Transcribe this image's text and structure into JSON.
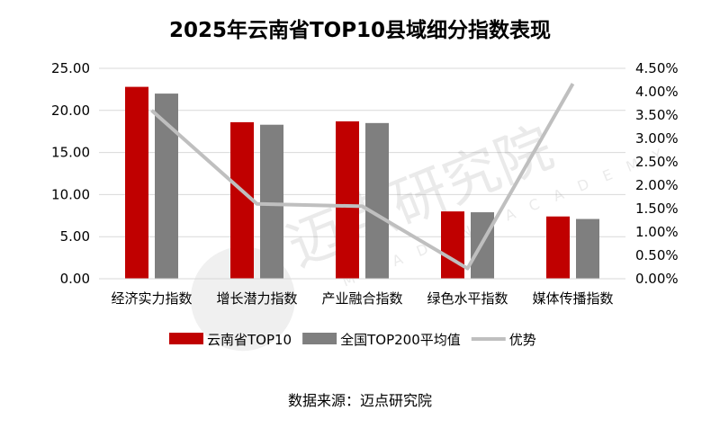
{
  "chart_data": {
    "type": "bar",
    "title": "2025年云南省TOP10县域细分指数表现",
    "categories": [
      "经济实力指数",
      "增长潜力指数",
      "产业融合指数",
      "绿色水平指数",
      "媒体传播指数"
    ],
    "series": [
      {
        "name": "云南省TOP10",
        "type": "bar",
        "axis": "left",
        "color": "#C00000",
        "values": [
          22.8,
          18.6,
          18.7,
          8.0,
          7.4
        ]
      },
      {
        "name": "全国TOP200平均值",
        "type": "bar",
        "axis": "left",
        "color": "#7F7F7F",
        "values": [
          22.0,
          18.3,
          18.5,
          7.9,
          7.1
        ]
      },
      {
        "name": "优势",
        "type": "line",
        "axis": "right",
        "color": "#BFBFBF",
        "values": [
          3.6,
          1.6,
          1.55,
          0.22,
          4.17
        ]
      }
    ],
    "y_left": {
      "range": [
        0,
        25
      ],
      "ticks": [
        "0.00",
        "5.00",
        "10.00",
        "15.00",
        "20.00",
        "25.00"
      ]
    },
    "y_right": {
      "range": [
        0,
        4.5
      ],
      "unit": "%",
      "ticks": [
        "0.00%",
        "0.50%",
        "1.00%",
        "1.50%",
        "2.00%",
        "2.50%",
        "3.00%",
        "3.50%",
        "4.00%",
        "4.50%"
      ]
    },
    "grid": true,
    "legend": "bottom"
  },
  "watermark": "迈点研究院 MEADIN ACADEMY",
  "source": "数据来源：迈点研究院"
}
